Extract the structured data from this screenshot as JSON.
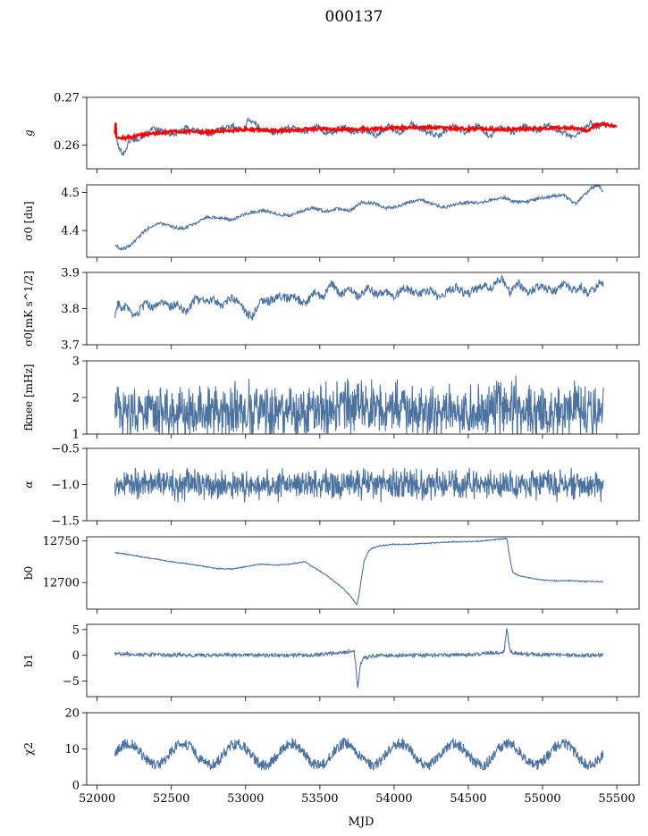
{
  "figure": {
    "title": "000137",
    "xlabel": "MJD"
  },
  "chart_data": [
    {
      "type": "line",
      "ylabel": "g",
      "xlim": [
        51930,
        55650
      ],
      "ylim": [
        0.255,
        0.27
      ],
      "yticks": [
        0.26,
        0.27
      ],
      "ytick_labels": [
        "0.26",
        "0.27"
      ],
      "grid": false,
      "series": [
        {
          "color": "#4c72a0",
          "x": [
            52120,
            52150,
            52180,
            52220,
            52270,
            52320,
            52380,
            52450,
            52520,
            52600,
            52680,
            52760,
            52840,
            52920,
            52980,
            53020,
            53060,
            53120,
            53200,
            53300,
            53400,
            53480,
            53540,
            53600,
            53660,
            53720,
            53800,
            53880,
            53960,
            54040,
            54120,
            54200,
            54300,
            54400,
            54480,
            54560,
            54640,
            54720,
            54800,
            54880,
            54960,
            55040,
            55120,
            55200,
            55260,
            55320,
            55380,
            55410
          ],
          "y": [
            0.2625,
            0.259,
            0.2582,
            0.261,
            0.2612,
            0.2622,
            0.2634,
            0.2628,
            0.2622,
            0.2636,
            0.263,
            0.2622,
            0.2636,
            0.264,
            0.2628,
            0.2655,
            0.2645,
            0.2632,
            0.2625,
            0.2638,
            0.2626,
            0.264,
            0.2624,
            0.2628,
            0.264,
            0.2625,
            0.2632,
            0.2618,
            0.264,
            0.2625,
            0.2644,
            0.263,
            0.2618,
            0.264,
            0.2626,
            0.264,
            0.2618,
            0.2638,
            0.2626,
            0.264,
            0.263,
            0.2642,
            0.2628,
            0.2616,
            0.2628,
            0.2646,
            0.2638,
            0.2648
          ]
        },
        {
          "color": "#ff0000",
          "x": [
            52120,
            52122,
            52124,
            52126,
            52130,
            52140,
            52160,
            52200,
            52250,
            52300,
            52400,
            52500,
            52600,
            52700,
            52800,
            52900,
            53000,
            53100,
            53200,
            53300,
            53400,
            53500,
            53600,
            53700,
            53800,
            53900,
            54000,
            54100,
            54200,
            54300,
            54400,
            54500,
            54600,
            54700,
            54800,
            54900,
            55000,
            55100,
            55200,
            55250,
            55300,
            55350,
            55400,
            55450,
            55500
          ],
          "y": [
            0.2625,
            0.27,
            0.266,
            0.263,
            0.262,
            0.2615,
            0.2614,
            0.2615,
            0.2618,
            0.2621,
            0.2625,
            0.2628,
            0.2628,
            0.2627,
            0.2628,
            0.2631,
            0.2633,
            0.2632,
            0.263,
            0.263,
            0.2633,
            0.2634,
            0.2633,
            0.2633,
            0.2633,
            0.2634,
            0.2636,
            0.2637,
            0.2637,
            0.2636,
            0.2635,
            0.2634,
            0.2634,
            0.2633,
            0.2633,
            0.2634,
            0.2635,
            0.2636,
            0.2636,
            0.2634,
            0.263,
            0.264,
            0.2645,
            0.2641,
            0.2638
          ]
        }
      ]
    },
    {
      "type": "line",
      "ylabel": "σ0 [du]",
      "xlim": [
        51930,
        55650
      ],
      "ylim": [
        4.33,
        4.52
      ],
      "yticks": [
        4.4,
        4.5
      ],
      "ytick_labels": [
        "4.4",
        "4.5"
      ],
      "grid": false,
      "series": [
        {
          "color": "#4c72a0",
          "x": [
            52120,
            52160,
            52200,
            52250,
            52300,
            52350,
            52420,
            52500,
            52580,
            52660,
            52740,
            52820,
            52900,
            52980,
            53060,
            53140,
            53220,
            53300,
            53380,
            53460,
            53540,
            53620,
            53700,
            53780,
            53860,
            53940,
            54020,
            54100,
            54180,
            54260,
            54340,
            54420,
            54500,
            54580,
            54660,
            54740,
            54820,
            54900,
            54980,
            55060,
            55140,
            55220,
            55280,
            55330,
            55380,
            55410
          ],
          "y": [
            4.362,
            4.352,
            4.355,
            4.37,
            4.392,
            4.408,
            4.42,
            4.41,
            4.405,
            4.42,
            4.436,
            4.434,
            4.428,
            4.44,
            4.45,
            4.452,
            4.442,
            4.44,
            4.452,
            4.46,
            4.45,
            4.458,
            4.452,
            4.474,
            4.472,
            4.46,
            4.462,
            4.474,
            4.48,
            4.47,
            4.46,
            4.47,
            4.474,
            4.472,
            4.482,
            4.486,
            4.474,
            4.476,
            4.484,
            4.49,
            4.494,
            4.47,
            4.492,
            4.512,
            4.52,
            4.5
          ]
        }
      ]
    },
    {
      "type": "line",
      "ylabel": "σ0[mK s^1/2]",
      "xlim": [
        51930,
        55650
      ],
      "ylim": [
        3.7,
        3.9
      ],
      "yticks": [
        3.7,
        3.8,
        3.9
      ],
      "ytick_labels": [
        "3.7",
        "3.8",
        "3.9"
      ],
      "grid": false,
      "series": [
        {
          "color": "#4c72a0",
          "x": [
            52120,
            52140,
            52170,
            52200,
            52240,
            52280,
            52330,
            52380,
            52430,
            52480,
            52540,
            52600,
            52660,
            52720,
            52780,
            52840,
            52900,
            52960,
            53000,
            53040,
            53100,
            53160,
            53220,
            53280,
            53340,
            53400,
            53460,
            53520,
            53580,
            53640,
            53700,
            53760,
            53820,
            53880,
            53940,
            54000,
            54060,
            54120,
            54180,
            54240,
            54300,
            54360,
            54420,
            54480,
            54540,
            54600,
            54660,
            54720,
            54780,
            54840,
            54900,
            54960,
            55020,
            55080,
            55140,
            55200,
            55260,
            55300,
            55340,
            55380,
            55410
          ],
          "y": [
            3.78,
            3.818,
            3.795,
            3.81,
            3.772,
            3.79,
            3.815,
            3.8,
            3.822,
            3.805,
            3.812,
            3.792,
            3.826,
            3.818,
            3.825,
            3.81,
            3.83,
            3.815,
            3.79,
            3.775,
            3.825,
            3.82,
            3.835,
            3.828,
            3.832,
            3.808,
            3.845,
            3.83,
            3.87,
            3.838,
            3.855,
            3.83,
            3.86,
            3.838,
            3.845,
            3.83,
            3.86,
            3.848,
            3.84,
            3.85,
            3.832,
            3.845,
            3.86,
            3.838,
            3.85,
            3.865,
            3.858,
            3.885,
            3.846,
            3.87,
            3.842,
            3.86,
            3.856,
            3.848,
            3.87,
            3.85,
            3.862,
            3.84,
            3.85,
            3.872,
            3.866
          ]
        }
      ]
    },
    {
      "type": "line",
      "ylabel": "fknee [mHz]",
      "xlim": [
        51930,
        55650
      ],
      "ylim": [
        1,
        3
      ],
      "yticks": [
        1,
        2,
        3
      ],
      "ytick_labels": [
        "1",
        "2",
        "3"
      ],
      "grid": false,
      "series": [
        {
          "color": "#4c72a0",
          "x_start": 52120,
          "x_end": 55410,
          "y_min": 1.0,
          "y_max": 2.7,
          "y_mean": 1.6,
          "peak_x": [
            53700,
            54750
          ],
          "peak_y": [
            2.65,
            2.6
          ]
        }
      ]
    },
    {
      "type": "line",
      "ylabel": "α",
      "xlim": [
        51930,
        55650
      ],
      "ylim": [
        -1.5,
        -0.5
      ],
      "yticks": [
        -1.5,
        -1.0,
        -0.5
      ],
      "ytick_labels": [
        "−1.5",
        "−1.0",
        "−0.5"
      ],
      "grid": false,
      "series": [
        {
          "color": "#4c72a0",
          "x_start": 52120,
          "x_end": 55410,
          "y_min": -1.25,
          "y_max": -0.77,
          "y_mean": -1.0
        }
      ]
    },
    {
      "type": "line",
      "ylabel": "b0",
      "xlim": [
        51930,
        55650
      ],
      "ylim": [
        12668,
        12755
      ],
      "yticks": [
        12700,
        12750
      ],
      "ytick_labels": [
        "12700",
        "12750"
      ],
      "grid": false,
      "series": [
        {
          "color": "#4c72a0",
          "x": [
            52120,
            52200,
            52300,
            52400,
            52500,
            52600,
            52700,
            52800,
            52900,
            53000,
            53100,
            53200,
            53300,
            53400,
            53450,
            53500,
            53550,
            53600,
            53650,
            53700,
            53730,
            53750,
            53760,
            53770,
            53780,
            53800,
            53830,
            53850,
            53900,
            54000,
            54100,
            54200,
            54300,
            54400,
            54500,
            54600,
            54700,
            54760,
            54780,
            54800,
            54850,
            54900,
            55000,
            55100,
            55200,
            55300,
            55410
          ],
          "y": [
            12736,
            12734,
            12731,
            12728,
            12725,
            12723,
            12720,
            12717,
            12716,
            12719,
            12722,
            12721,
            12722,
            12725,
            12719,
            12714,
            12708,
            12701,
            12694,
            12685,
            12678,
            12673,
            12682,
            12692,
            12705,
            12727,
            12738,
            12741,
            12744,
            12746,
            12746,
            12747,
            12748,
            12749,
            12749,
            12750,
            12752,
            12753,
            12729,
            12712,
            12708,
            12706,
            12703,
            12702,
            12702,
            12701,
            12701
          ]
        }
      ]
    },
    {
      "type": "line",
      "ylabel": "b1",
      "xlim": [
        51930,
        55650
      ],
      "ylim": [
        -8,
        6
      ],
      "yticks": [
        -5,
        0,
        5
      ],
      "ytick_labels": [
        "−5",
        "0",
        "5"
      ],
      "grid": false,
      "series": [
        {
          "color": "#4c72a0",
          "x": [
            52120,
            52400,
            52700,
            53000,
            53300,
            53500,
            53650,
            53700,
            53730,
            53745,
            53755,
            53765,
            53775,
            53800,
            53850,
            53900,
            54200,
            54500,
            54740,
            54750,
            54760,
            54770,
            54780,
            54800,
            54900,
            55100,
            55410
          ],
          "y": [
            0.3,
            0.1,
            0.0,
            0.1,
            0.0,
            0.1,
            0.5,
            0.7,
            0.9,
            -2.5,
            -6.7,
            -4.0,
            -1.5,
            -0.5,
            -0.2,
            0.0,
            0.0,
            0.1,
            0.6,
            3.0,
            5.5,
            3.0,
            1.0,
            0.6,
            0.2,
            0.1,
            0.0
          ]
        }
      ]
    },
    {
      "type": "line",
      "ylabel": "χ2",
      "xlim": [
        51930,
        55650
      ],
      "ylim": [
        0,
        20
      ],
      "yticks": [
        0,
        10,
        20
      ],
      "ytick_labels": [
        "0",
        "10",
        "20"
      ],
      "grid": false,
      "series": [
        {
          "color": "#4c72a0",
          "x_start": 52120,
          "x_end": 55410,
          "y_mean": 8.5,
          "y_amplitude": 3.0,
          "period_days": 365.25,
          "y_min": 4.0,
          "y_max": 14.0
        }
      ]
    }
  ],
  "xaxis": {
    "ticks": [
      52000,
      52500,
      53000,
      53500,
      54000,
      54500,
      55000,
      55500
    ],
    "tick_labels": [
      "52000",
      "52500",
      "53000",
      "53500",
      "54000",
      "54500",
      "55000",
      "55500"
    ]
  }
}
